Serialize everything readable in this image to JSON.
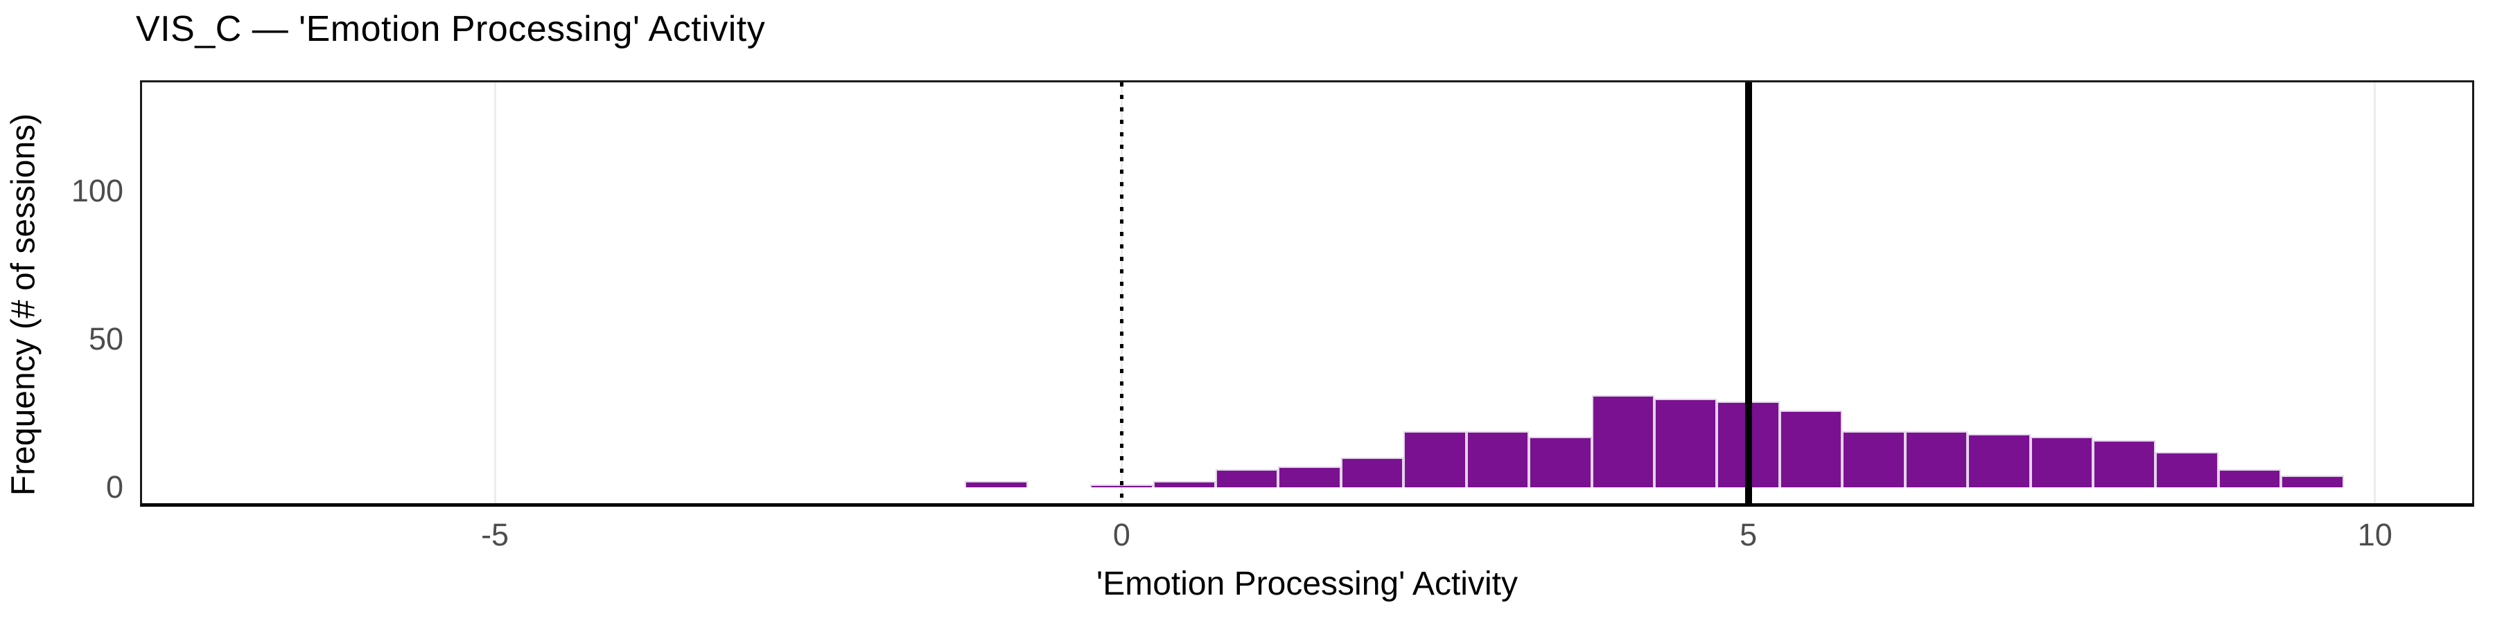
{
  "title": "VIS_C — 'Emotion Processing' Activity",
  "chart_data": {
    "type": "bar",
    "subtype": "histogram",
    "title": "VIS_C — 'Emotion Processing' Activity",
    "xlabel": "'Emotion Processing' Activity",
    "ylabel": "Frequency (# of sessions)",
    "x_ticks": [
      -5,
      0,
      5,
      10
    ],
    "y_ticks": [
      0,
      50,
      100
    ],
    "xlim": [
      -7.815,
      10.775
    ],
    "ylim": [
      -5.37,
      136.7
    ],
    "grid": "vertical-major-only",
    "grid_x": [
      -5,
      0,
      5,
      10
    ],
    "grid_color": "#ececec",
    "legend": "none",
    "bin_width": 0.5,
    "bins": [
      {
        "center": -1.0,
        "count": 2
      },
      {
        "center": -0.5,
        "count": 0
      },
      {
        "center": 0.0,
        "count": 1
      },
      {
        "center": 0.5,
        "count": 2
      },
      {
        "center": 1.0,
        "count": 6
      },
      {
        "center": 1.5,
        "count": 7
      },
      {
        "center": 2.0,
        "count": 10
      },
      {
        "center": 2.5,
        "count": 19
      },
      {
        "center": 3.0,
        "count": 19
      },
      {
        "center": 3.5,
        "count": 17
      },
      {
        "center": 4.0,
        "count": 31
      },
      {
        "center": 4.5,
        "count": 30
      },
      {
        "center": 5.0,
        "count": 29
      },
      {
        "center": 5.5,
        "count": 26
      },
      {
        "center": 6.0,
        "count": 19
      },
      {
        "center": 6.5,
        "count": 19
      },
      {
        "center": 7.0,
        "count": 18
      },
      {
        "center": 7.5,
        "count": 17
      },
      {
        "center": 8.0,
        "count": 16
      },
      {
        "center": 8.5,
        "count": 12
      },
      {
        "center": 9.0,
        "count": 6
      },
      {
        "center": 9.5,
        "count": 4
      }
    ],
    "reference_lines": [
      {
        "x": 0,
        "style": "dotted",
        "color": "#000000",
        "name": "zero-reference-line"
      },
      {
        "x": 5,
        "style": "solid",
        "color": "#000000",
        "name": "mean-line"
      }
    ],
    "bar_fill": "#7A1190",
    "bar_stroke": "#E2D5E9",
    "tick_label_color": "#4d4d4d",
    "panel_border_color": "#1a1a1a"
  }
}
